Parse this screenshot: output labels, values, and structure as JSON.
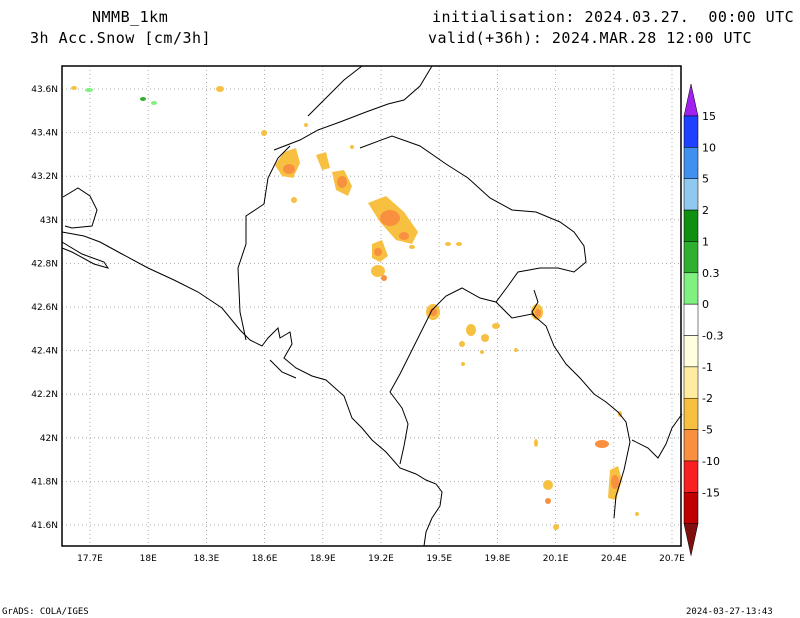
{
  "header": {
    "model": "NMMB_1km",
    "variable": "3h Acc.Snow [cm/3h]",
    "init": "initialisation: 2024.03.27.  00:00 UTC",
    "valid": "valid(+36h): 2024.MAR.28 12:00 UTC"
  },
  "map": {
    "lon_labels": [
      "17.7E",
      "18E",
      "18.3E",
      "18.6E",
      "18.9E",
      "19.2E",
      "19.5E",
      "19.8E",
      "20.1E",
      "20.4E",
      "20.7E"
    ],
    "lat_labels": [
      "43.6N",
      "43.4N",
      "43.2N",
      "43N",
      "42.8N",
      "42.6N",
      "42.4N",
      "42.2N",
      "42N",
      "41.8N",
      "41.6N"
    ]
  },
  "colorbar": {
    "labels": [
      "15",
      "10",
      "5",
      "2",
      "1",
      "0.3",
      "0",
      "-0.3",
      "-1",
      "-2",
      "-5",
      "-10",
      "-15"
    ],
    "colors": [
      "#a020f0",
      "#2040ff",
      "#4090f0",
      "#90c8f0",
      "#109010",
      "#30b030",
      "#80f080",
      "#ffffff",
      "#ffffe0",
      "#ffeca0",
      "#f8c040",
      "#f89040",
      "#f82020",
      "#c00000",
      "#801010"
    ]
  },
  "footer": {
    "left": "GrADS: COLA/IGES",
    "right": "2024-03-27-13:43"
  }
}
